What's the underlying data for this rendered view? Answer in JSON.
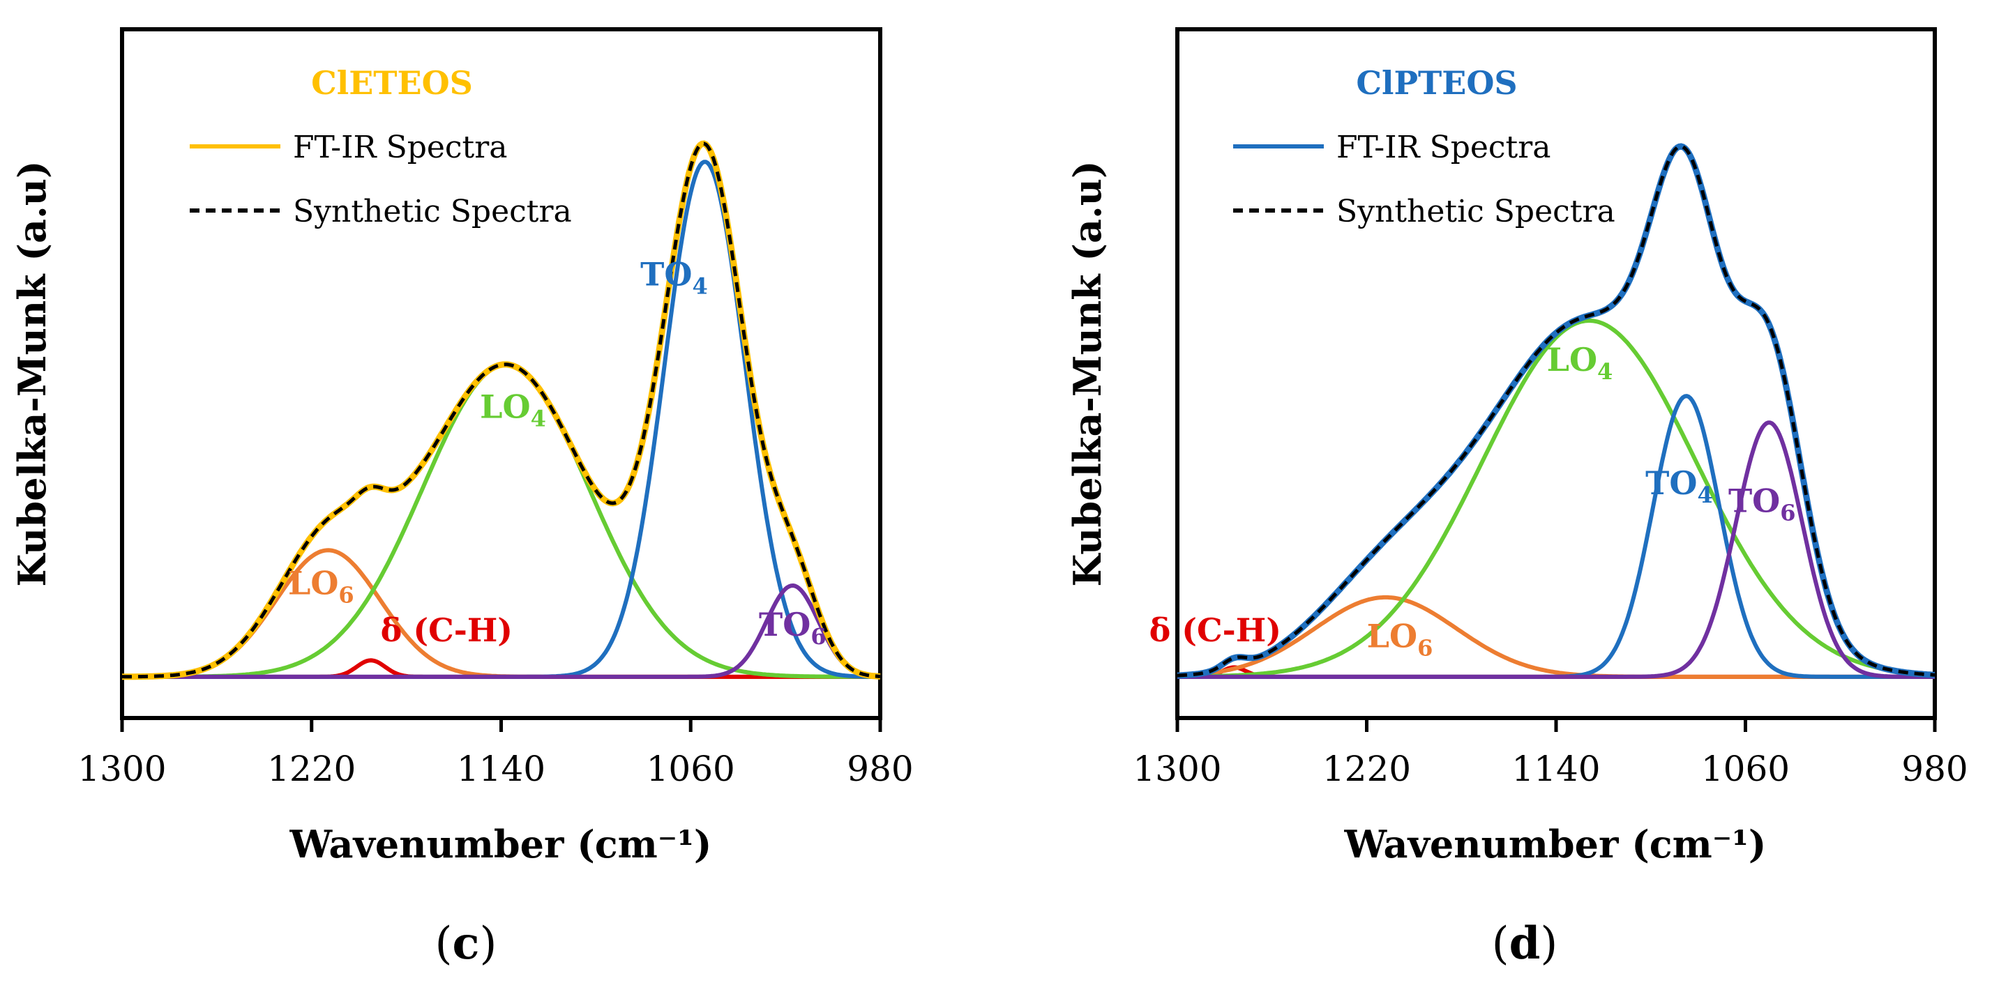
{
  "chart_data": [
    {
      "type": "line",
      "panel_label": "c",
      "title": "ClETEOS",
      "title_color": "#FFC000",
      "xlabel": "Wavenumber (cm⁻¹)",
      "ylabel": "Kubelka-Munk (a.u)",
      "xlim": [
        1300,
        980
      ],
      "x_reversed": true,
      "ylim": [
        -0.07,
        1.1
      ],
      "xticks": [
        1300,
        1220,
        1140,
        1060,
        980
      ],
      "grid": false,
      "legend": [
        {
          "label": "FT-IR Spectra",
          "color": "#FFC000",
          "style": "solid"
        },
        {
          "label": "Synthetic Spectra",
          "color": "#000000",
          "style": "dashed"
        }
      ],
      "components": [
        {
          "name": "LO6",
          "label": "LO",
          "sub": "6",
          "color": "#ED7D31",
          "center": 1213,
          "amplitude": 0.215,
          "width": 22
        },
        {
          "name": "δ (C-H)",
          "label": "δ (C-H)",
          "sub": "",
          "color": "#E00000",
          "center": 1195,
          "amplitude": 0.028,
          "width": 6
        },
        {
          "name": "LO4",
          "label": "LO",
          "sub": "4",
          "color": "#66CC33",
          "center": 1138,
          "amplitude": 0.53,
          "width": 35
        },
        {
          "name": "TO4",
          "label": "TO",
          "sub": "4",
          "color": "#1F6FBF",
          "center": 1054,
          "amplitude": 0.875,
          "width": 17
        },
        {
          "name": "TO6",
          "label": "TO",
          "sub": "6",
          "color": "#7030A0",
          "center": 1017,
          "amplitude": 0.155,
          "width": 11
        }
      ],
      "peak_labels": [
        {
          "name": "LO6",
          "x": 1216,
          "y": 0.14
        },
        {
          "name": "δ (C-H)",
          "x": 1163,
          "y": 0.06
        },
        {
          "name": "LO4",
          "x": 1135,
          "y": 0.44
        },
        {
          "name": "TO4",
          "x": 1067,
          "y": 0.665
        },
        {
          "name": "TO6",
          "x": 1017,
          "y": 0.07
        }
      ]
    },
    {
      "type": "line",
      "panel_label": "d",
      "title": "ClPTEOS",
      "title_color": "#1F6FBF",
      "xlabel": "Wavenumber (cm⁻¹)",
      "ylabel": "Kubelka-Munk (a.u)",
      "xlim": [
        1300,
        980
      ],
      "x_reversed": true,
      "ylim": [
        -0.07,
        1.1
      ],
      "xticks": [
        1300,
        1220,
        1140,
        1060,
        980
      ],
      "grid": false,
      "legend": [
        {
          "label": "FT-IR Spectra",
          "color": "#1F6FBF",
          "style": "solid"
        },
        {
          "label": "Synthetic Spectra",
          "color": "#000000",
          "style": "dashed"
        }
      ],
      "components": [
        {
          "name": "δ (C-H)",
          "label": "δ (C-H)",
          "sub": "",
          "color": "#E00000",
          "center": 1276,
          "amplitude": 0.016,
          "width": 5
        },
        {
          "name": "LO6",
          "label": "LO",
          "sub": "6",
          "color": "#ED7D31",
          "center": 1212,
          "amplitude": 0.135,
          "width": 30
        },
        {
          "name": "LO4",
          "label": "LO",
          "sub": "4",
          "color": "#66CC33",
          "center": 1126,
          "amplitude": 0.605,
          "width": 45
        },
        {
          "name": "TO4",
          "label": "TO",
          "sub": "4",
          "color": "#1F6FBF",
          "center": 1085,
          "amplitude": 0.477,
          "width": 14
        },
        {
          "name": "TO6",
          "label": "TO",
          "sub": "6",
          "color": "#7030A0",
          "center": 1050,
          "amplitude": 0.432,
          "width": 14
        }
      ],
      "peak_labels": [
        {
          "name": "δ (C-H)",
          "x": 1284,
          "y": 0.06
        },
        {
          "name": "LO6",
          "x": 1206,
          "y": 0.05
        },
        {
          "name": "LO4",
          "x": 1130,
          "y": 0.52
        },
        {
          "name": "TO4",
          "x": 1088,
          "y": 0.31
        },
        {
          "name": "TO6",
          "x": 1053,
          "y": 0.28
        }
      ]
    }
  ]
}
